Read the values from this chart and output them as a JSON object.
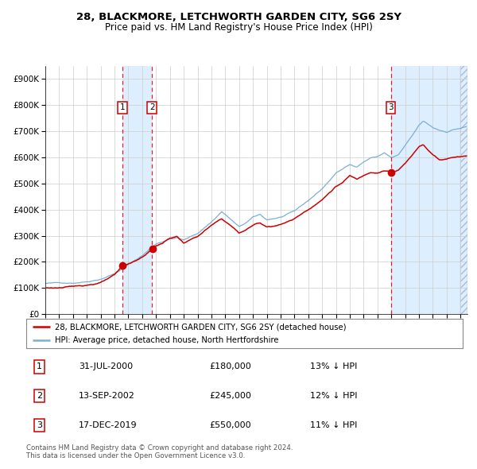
{
  "title": "28, BLACKMORE, LETCHWORTH GARDEN CITY, SG6 2SY",
  "subtitle": "Price paid vs. HM Land Registry's House Price Index (HPI)",
  "legend_property": "28, BLACKMORE, LETCHWORTH GARDEN CITY, SG6 2SY (detached house)",
  "legend_hpi": "HPI: Average price, detached house, North Hertfordshire",
  "footer": "Contains HM Land Registry data © Crown copyright and database right 2024.\nThis data is licensed under the Open Government Licence v3.0.",
  "sales": [
    {
      "num": 1,
      "date_x": 2000.58,
      "price": 180000,
      "label": "31-JUL-2000",
      "hpi_pct": "13% ↓ HPI"
    },
    {
      "num": 2,
      "date_x": 2002.71,
      "price": 245000,
      "label": "13-SEP-2002",
      "hpi_pct": "12% ↓ HPI"
    },
    {
      "num": 3,
      "date_x": 2019.96,
      "price": 550000,
      "label": "17-DEC-2019",
      "hpi_pct": "11% ↓ HPI"
    }
  ],
  "property_color": "#cc0000",
  "hpi_color": "#7ab0d4",
  "shade_color": "#ddeeff",
  "hatch_color": "#c8d8ee",
  "ylim": [
    0,
    950000
  ],
  "xlim_start": 1995.0,
  "xlim_end": 2025.5,
  "title_fontsize": 9.5,
  "subtitle_fontsize": 8.5
}
